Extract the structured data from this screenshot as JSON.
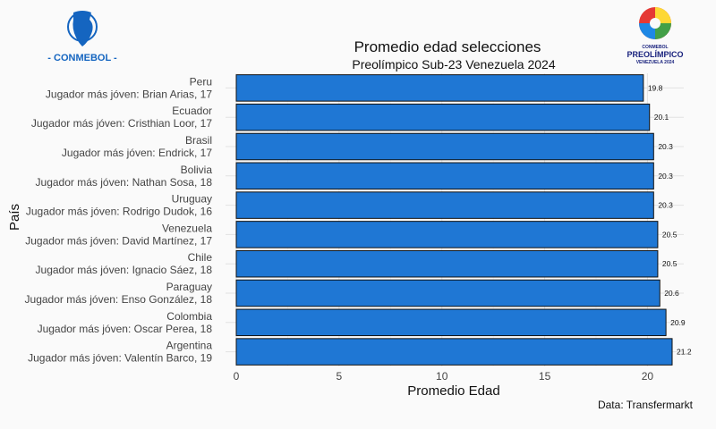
{
  "logos": {
    "left_text": "- CONMEBOL -",
    "right_line1": "CONMEBOL",
    "right_line2": "PREOLÍMPICO",
    "right_line3": "VENEZUELA 2024"
  },
  "chart_data": {
    "type": "bar",
    "orientation": "horizontal",
    "title": "Promedio edad selecciones",
    "subtitle": "Preolímpico Sub-23 Venezuela 2024",
    "xlabel": "Promedio Edad",
    "ylabel": "País",
    "caption": "Data: Transfermarkt",
    "xlim": [
      0,
      21.2
    ],
    "xticks": [
      0,
      5,
      10,
      15,
      20
    ],
    "grid": true,
    "bar_color": "#1f77d4",
    "categories": [
      {
        "country": "Peru",
        "note": "Jugador más jóven: Brian Arias, 17",
        "value": 19.8
      },
      {
        "country": "Ecuador",
        "note": "Jugador más jóven: Cristhian Loor, 17",
        "value": 20.1
      },
      {
        "country": "Brasil",
        "note": "Jugador más jóven: Endrick, 17",
        "value": 20.3
      },
      {
        "country": "Bolivia",
        "note": "Jugador más jóven: Nathan Sosa, 18",
        "value": 20.3
      },
      {
        "country": "Uruguay",
        "note": "Jugador más jóven: Rodrigo Dudok, 16",
        "value": 20.3
      },
      {
        "country": "Venezuela",
        "note": "Jugador más jóven: David Martínez, 17",
        "value": 20.5
      },
      {
        "country": "Chile",
        "note": "Jugador más jóven: Ignacio Sáez, 18",
        "value": 20.5
      },
      {
        "country": "Paraguay",
        "note": "Jugador más jóven: Enso González, 18",
        "value": 20.6
      },
      {
        "country": "Colombia",
        "note": "Jugador más jóven: Oscar Perea, 18",
        "value": 20.9
      },
      {
        "country": "Argentina",
        "note": "Jugador más jóven: Valentín Barco, 19",
        "value": 21.2
      }
    ]
  }
}
